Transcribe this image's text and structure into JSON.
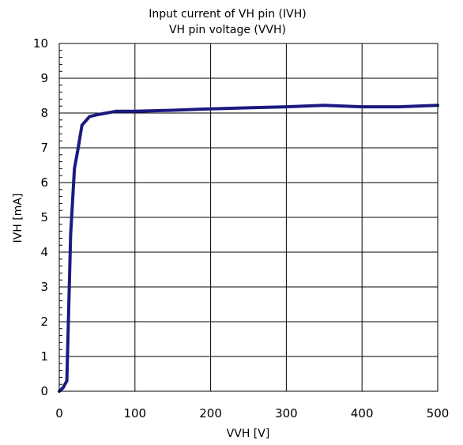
{
  "chart_data": {
    "type": "line",
    "title": "Input current of VH pin (IVH)",
    "subtitle": "VH pin voltage (VVH)",
    "xlabel": "VVH [V]",
    "ylabel": "IVH [mA]",
    "xlim": [
      0,
      500
    ],
    "ylim": [
      0,
      10
    ],
    "xticks": [
      "0",
      "100",
      "200",
      "300",
      "400",
      "500"
    ],
    "yticks": [
      "0",
      "1",
      "2",
      "3",
      "4",
      "5",
      "6",
      "7",
      "8",
      "9",
      "10"
    ],
    "grid": true,
    "legend": "none",
    "series": [
      {
        "color": "#1a1a80",
        "x": [
          0,
          5,
          10,
          15,
          20,
          25,
          30,
          40,
          50,
          75,
          100,
          150,
          200,
          250,
          300,
          350,
          400,
          450,
          500
        ],
        "y": [
          0,
          0.1,
          0.3,
          4.5,
          6.4,
          7.0,
          7.65,
          7.9,
          7.95,
          8.05,
          8.05,
          8.08,
          8.12,
          8.15,
          8.18,
          8.22,
          8.18,
          8.18,
          8.22
        ]
      }
    ]
  }
}
